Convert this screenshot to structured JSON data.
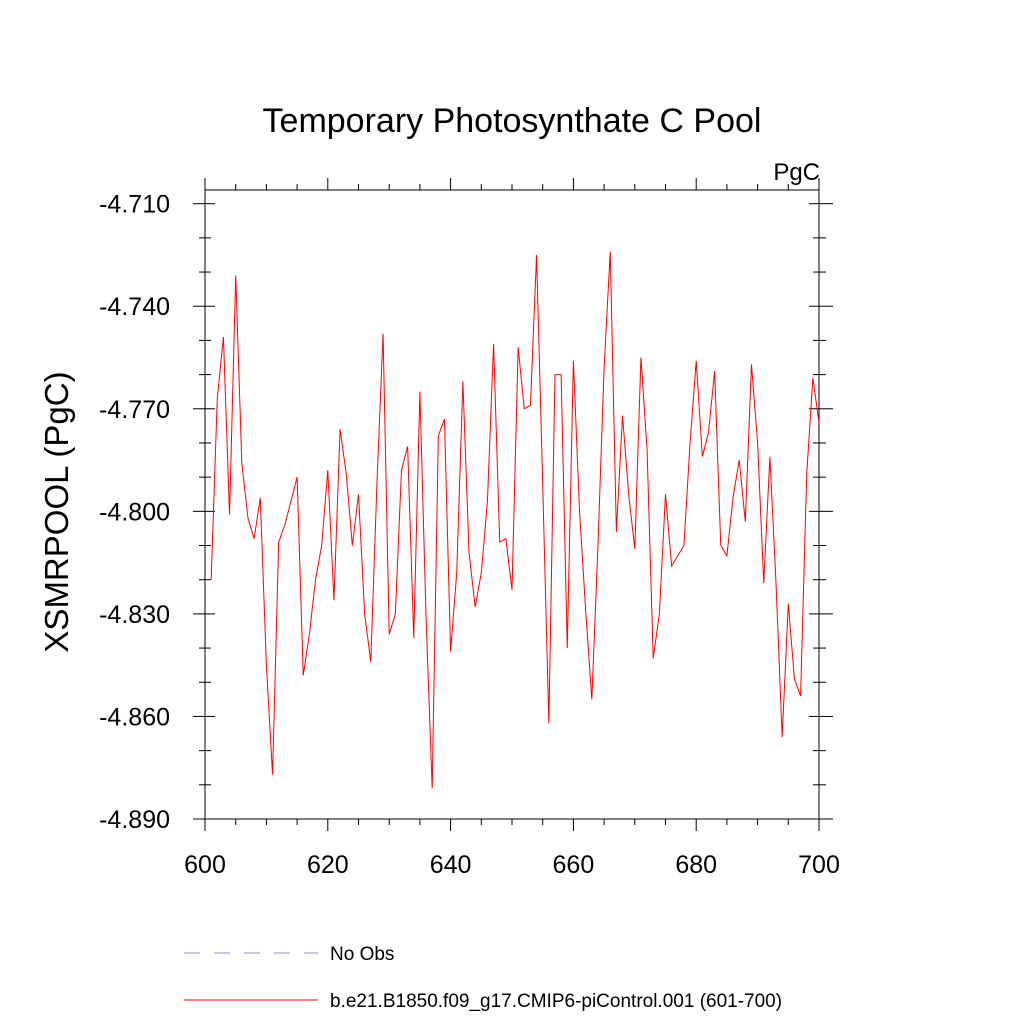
{
  "chart_data": {
    "type": "line",
    "title": "Temporary Photosynthate C Pool",
    "units_label": "PgC",
    "ylabel": "XSMRPOOL  (PgC)",
    "xlabel": "",
    "xlim": [
      600,
      700
    ],
    "ylim": [
      -4.89,
      -4.706
    ],
    "x_ticks": [
      600,
      620,
      640,
      660,
      680,
      700
    ],
    "x_tick_labels": [
      "600",
      "620",
      "640",
      "660",
      "680",
      "700"
    ],
    "y_ticks": [
      -4.71,
      -4.74,
      -4.77,
      -4.8,
      -4.83,
      -4.86,
      -4.89
    ],
    "y_tick_labels": [
      "-4.710",
      "-4.740",
      "-4.770",
      "-4.800",
      "-4.830",
      "-4.860",
      "-4.890"
    ],
    "series": [
      {
        "name": "b.e21.B1850.f09_g17.CMIP6-piControl.001 (601-700)",
        "color": "#ff0000",
        "style": "solid",
        "x": [
          601,
          602,
          603,
          604,
          605,
          606,
          607,
          608,
          609,
          610,
          611,
          612,
          613,
          614,
          615,
          616,
          617,
          618,
          619,
          620,
          621,
          622,
          623,
          624,
          625,
          626,
          627,
          628,
          629,
          630,
          631,
          632,
          633,
          634,
          635,
          636,
          637,
          638,
          639,
          640,
          641,
          642,
          643,
          644,
          645,
          646,
          647,
          648,
          649,
          650,
          651,
          652,
          653,
          654,
          655,
          656,
          657,
          658,
          659,
          660,
          661,
          662,
          663,
          664,
          665,
          666,
          667,
          668,
          669,
          670,
          671,
          672,
          673,
          674,
          675,
          676,
          677,
          678,
          679,
          680,
          681,
          682,
          683,
          684,
          685,
          686,
          687,
          688,
          689,
          690,
          691,
          692,
          693,
          694,
          695,
          696,
          697,
          698,
          699,
          700
        ],
        "values": [
          -4.82,
          -4.767,
          -4.749,
          -4.801,
          -4.731,
          -4.786,
          -4.802,
          -4.808,
          -4.796,
          -4.845,
          -4.877,
          -4.809,
          -4.804,
          -4.797,
          -4.79,
          -4.848,
          -4.836,
          -4.82,
          -4.81,
          -4.788,
          -4.826,
          -4.776,
          -4.789,
          -4.81,
          -4.795,
          -4.83,
          -4.844,
          -4.792,
          -4.748,
          -4.836,
          -4.83,
          -4.788,
          -4.781,
          -4.837,
          -4.765,
          -4.831,
          -4.881,
          -4.778,
          -4.773,
          -4.841,
          -4.818,
          -4.762,
          -4.812,
          -4.828,
          -4.818,
          -4.797,
          -4.751,
          -4.809,
          -4.808,
          -4.823,
          -4.752,
          -4.77,
          -4.769,
          -4.725,
          -4.792,
          -4.862,
          -4.76,
          -4.76,
          -4.84,
          -4.756,
          -4.8,
          -4.829,
          -4.855,
          -4.81,
          -4.758,
          -4.724,
          -4.806,
          -4.772,
          -4.795,
          -4.811,
          -4.755,
          -4.782,
          -4.843,
          -4.83,
          -4.795,
          -4.816,
          -4.813,
          -4.81,
          -4.78,
          -4.756,
          -4.784,
          -4.777,
          -4.759,
          -4.81,
          -4.813,
          -4.796,
          -4.785,
          -4.803,
          -4.757,
          -4.78,
          -4.821,
          -4.784,
          -4.821,
          -4.866,
          -4.827,
          -4.849,
          -4.854,
          -4.789,
          -4.761,
          -4.774
        ]
      }
    ],
    "legend": [
      {
        "label": "No Obs",
        "color": "#8f8fcf",
        "style": "dashed"
      },
      {
        "label": "b.e21.B1850.f09_g17.CMIP6-piControl.001 (601-700)",
        "color": "#ff0000",
        "style": "solid"
      }
    ]
  }
}
